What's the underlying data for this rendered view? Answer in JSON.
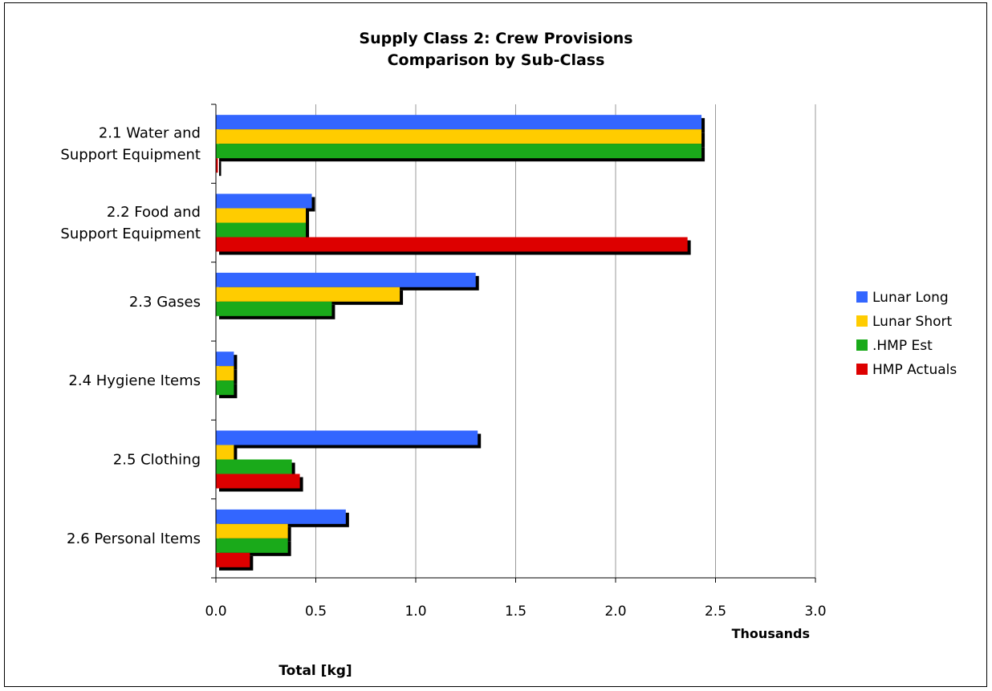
{
  "chart_data": {
    "type": "bar",
    "orientation": "horizontal",
    "title_lines": [
      "Supply Class 2: Crew Provisions",
      "Comparison by Sub-Class"
    ],
    "categories": [
      [
        "2.1 Water and",
        "Support Equipment"
      ],
      [
        "2.2 Food and",
        "Support Equipment"
      ],
      [
        "2.3 Gases"
      ],
      [
        "2.4 Hygiene Items"
      ],
      [
        "2.5 Clothing"
      ],
      [
        "2.6 Personal Items"
      ]
    ],
    "series": [
      {
        "name": "Lunar Long",
        "color": "#3366ff",
        "values": [
          2.43,
          0.48,
          1.3,
          0.09,
          1.31,
          0.65
        ]
      },
      {
        "name": "Lunar Short",
        "color": "#ffcc00",
        "values": [
          2.43,
          0.45,
          0.92,
          0.09,
          0.09,
          0.36
        ]
      },
      {
        "name": ".HMP Est",
        "color": "#1aaa1a",
        "values": [
          2.43,
          0.45,
          0.58,
          0.09,
          0.38,
          0.36
        ]
      },
      {
        "name": "HMP Actuals",
        "color": "#dd0000",
        "values": [
          0.01,
          2.36,
          0.0,
          0.0,
          0.42,
          0.17
        ]
      }
    ],
    "xlim": [
      0,
      3.0
    ],
    "xticks": [
      "0.0",
      "0.5",
      "1.0",
      "1.5",
      "2.0",
      "2.5",
      "3.0"
    ],
    "xunit": "Thousands",
    "xlabel": "Total [kg]",
    "grid": true,
    "legend_position": "right"
  }
}
